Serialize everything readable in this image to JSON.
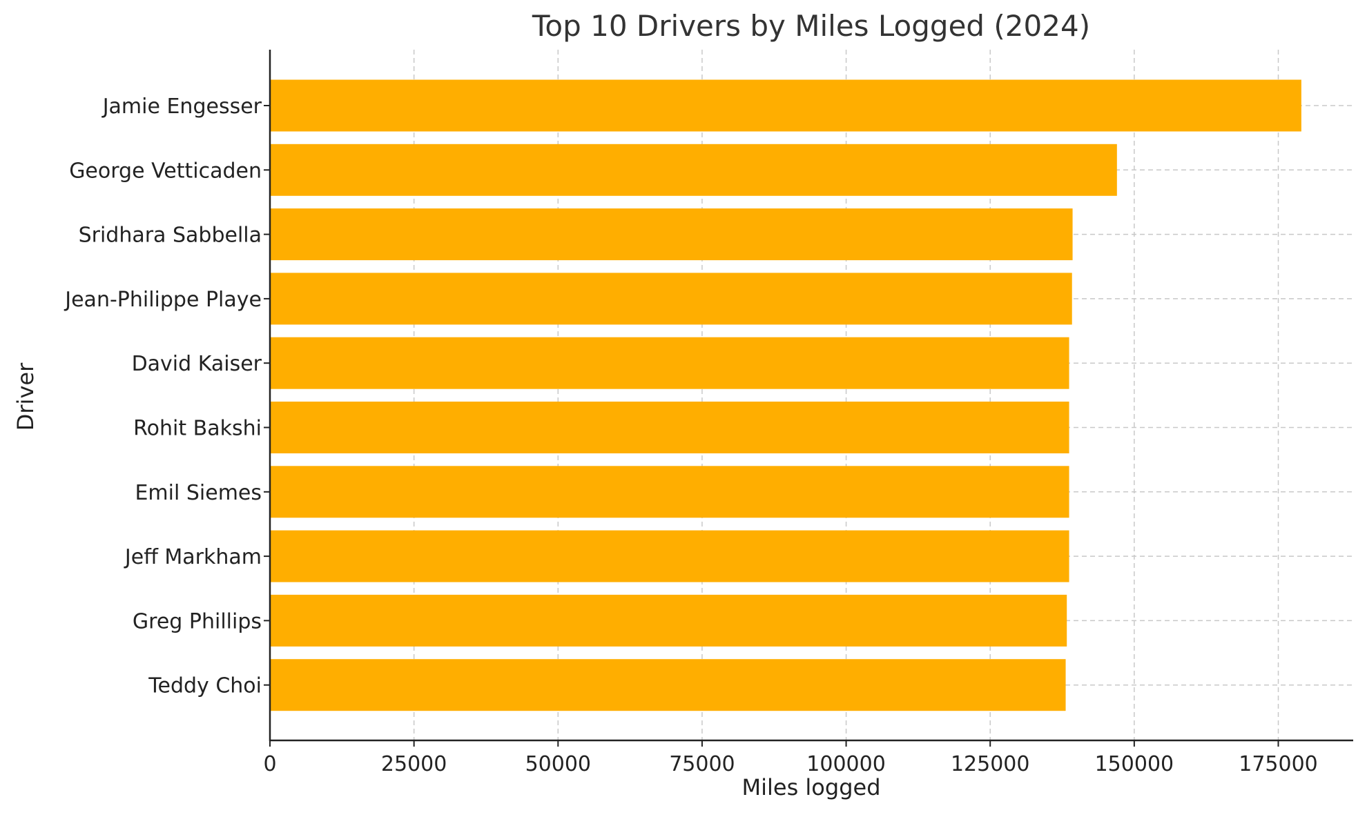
{
  "chart_data": {
    "type": "bar",
    "orientation": "horizontal",
    "title": "Top 10 Drivers by Miles Logged (2024)",
    "xlabel": "Miles logged",
    "ylabel": "Driver",
    "xlim": [
      0,
      188000
    ],
    "xticks": [
      0,
      25000,
      50000,
      75000,
      100000,
      125000,
      150000,
      175000
    ],
    "grid": true,
    "bar_color": "#FFAE00",
    "categories": [
      "Jamie Engesser",
      "George Vetticaden",
      "Sridhara Sabbella",
      "Jean-Philippe Playe",
      "David Kaiser",
      "Rohit Bakshi",
      "Emil Siemes",
      "Jeff Markham",
      "Greg Phillips",
      "Teddy Choi"
    ],
    "values": [
      179000,
      147000,
      139300,
      139200,
      138700,
      138700,
      138700,
      138700,
      138300,
      138100
    ]
  }
}
